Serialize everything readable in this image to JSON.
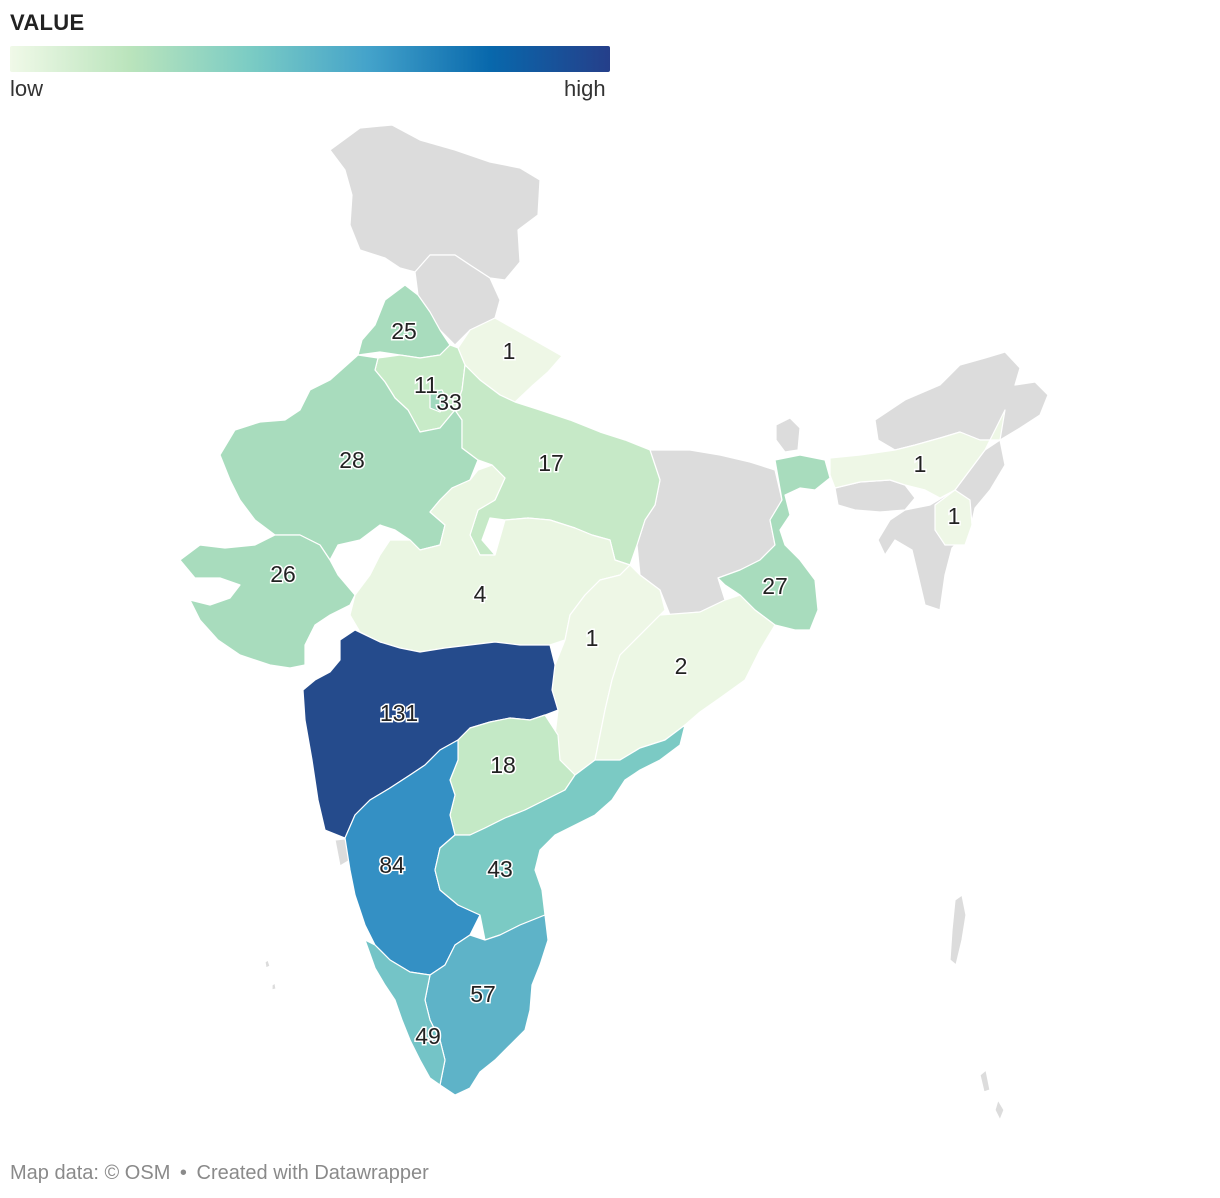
{
  "legend": {
    "title": "VALUE",
    "low_label": "low",
    "high_label": "high",
    "gradient": [
      "#f0f9e8",
      "#bae4bc",
      "#7bccc4",
      "#43a2ca",
      "#0868ac",
      "#253f8a"
    ]
  },
  "chart_data": {
    "type": "choropleth",
    "region": "India",
    "title": "VALUE",
    "scale": {
      "min_label": "low",
      "max_label": "high"
    },
    "states": [
      {
        "name": "Punjab",
        "value": 25,
        "color": "#a8dcbd"
      },
      {
        "name": "Uttarakhand",
        "value": 1,
        "color": "#eef7e6"
      },
      {
        "name": "Haryana",
        "value": 11,
        "color": "#c8ebc8"
      },
      {
        "name": "Delhi",
        "value": 33,
        "color": "#a0d8be"
      },
      {
        "name": "Rajasthan",
        "value": 28,
        "color": "#a8dcbd"
      },
      {
        "name": "Uttar Pradesh",
        "value": 17,
        "color": "#c6e9c7"
      },
      {
        "name": "Assam",
        "value": 1,
        "color": "#eef7e6"
      },
      {
        "name": "Tripura",
        "value": 1,
        "color": "#eef7e6"
      },
      {
        "name": "Gujarat",
        "value": 26,
        "color": "#a8dcbd"
      },
      {
        "name": "Madhya Pradesh",
        "value": 4,
        "color": "#eaf6e2"
      },
      {
        "name": "West Bengal",
        "value": 27,
        "color": "#a8dcbd"
      },
      {
        "name": "Chhattisgarh",
        "value": 1,
        "color": "#eef7e6"
      },
      {
        "name": "Odisha",
        "value": 2,
        "color": "#ecf7e4"
      },
      {
        "name": "Maharashtra",
        "value": 131,
        "color": "#254b8c"
      },
      {
        "name": "Telangana",
        "value": 18,
        "color": "#c4e9c6"
      },
      {
        "name": "Karnataka",
        "value": 84,
        "color": "#3490c4"
      },
      {
        "name": "Andhra Pradesh",
        "value": 43,
        "color": "#7bcac4"
      },
      {
        "name": "Tamil Nadu",
        "value": 57,
        "color": "#5eb3c8"
      },
      {
        "name": "Kerala",
        "value": 49,
        "color": "#74c4c7"
      }
    ]
  },
  "labels": {
    "punjab": "25",
    "uttarakhand": "1",
    "haryana": "11",
    "delhi": "33",
    "rajasthan": "28",
    "uttar_pradesh": "17",
    "assam": "1",
    "tripura": "1",
    "gujarat": "26",
    "madhya_pradesh": "4",
    "west_bengal": "27",
    "chhattisgarh": "1",
    "odisha": "2",
    "maharashtra": "131",
    "telangana": "18",
    "karnataka": "84",
    "andhra_pradesh": "43",
    "tamil_nadu": "57",
    "kerala": "49"
  },
  "footer": {
    "map_data": "Map data: © OSM",
    "separator": "•",
    "credit": "Created with Datawrapper"
  }
}
